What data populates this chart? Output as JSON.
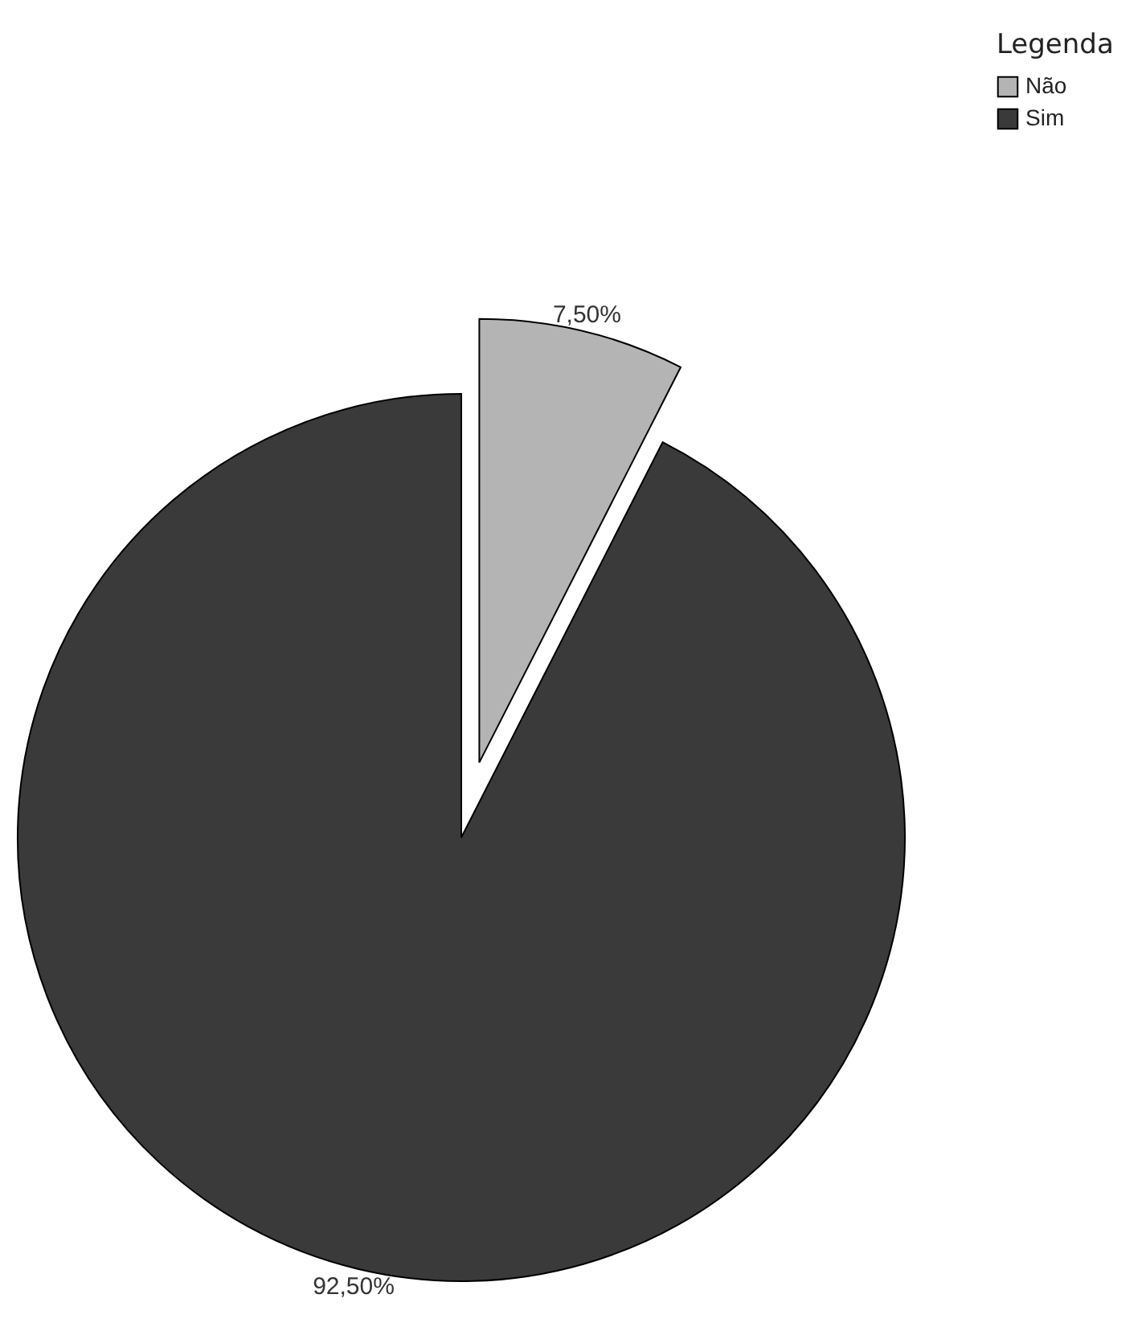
{
  "chart_data": {
    "type": "pie",
    "categories": [
      "Não",
      "Sim"
    ],
    "values": [
      7.5,
      92.5
    ],
    "colors": [
      "#b4b4b4",
      "#3a3a3a"
    ],
    "value_labels": [
      "7,50%",
      "92,50%"
    ],
    "legend_title": "Legenda",
    "legend": "top right"
  }
}
